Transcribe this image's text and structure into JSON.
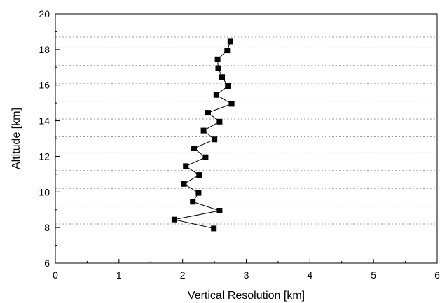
{
  "chart_data": {
    "type": "line",
    "title": "",
    "xlabel": "Vertical Resolution [km]",
    "ylabel": "Altitude [km]",
    "xlim": [
      0,
      6
    ],
    "ylim": [
      6,
      20
    ],
    "xticks": [
      "0",
      "1",
      "2",
      "3",
      "4",
      "5",
      "6"
    ],
    "yticks": [
      "6",
      "8",
      "10",
      "12",
      "14",
      "16",
      "18",
      "20"
    ],
    "x_minor_ticks": true,
    "y_minor_ticks": true,
    "grid": "horizontal dotted lines at 8.2, 9.2, 10.2, 11.2, 12.2, 13.1, 14.1, 15.1, 16.1, 17.1, 18.1, 18.7 km",
    "grid_y": [
      8.2,
      9.2,
      10.2,
      11.2,
      12.2,
      13.1,
      14.1,
      15.1,
      16.1,
      17.1,
      18.1,
      18.7
    ],
    "marker": "square",
    "legend": "none",
    "series": [
      {
        "points": [
          {
            "x": 2.49,
            "y": 7.95
          },
          {
            "x": 1.87,
            "y": 8.45
          },
          {
            "x": 2.58,
            "y": 8.95
          },
          {
            "x": 2.16,
            "y": 9.45
          },
          {
            "x": 2.25,
            "y": 9.95
          },
          {
            "x": 2.02,
            "y": 10.45
          },
          {
            "x": 2.26,
            "y": 10.95
          },
          {
            "x": 2.05,
            "y": 11.45
          },
          {
            "x": 2.36,
            "y": 11.95
          },
          {
            "x": 2.18,
            "y": 12.45
          },
          {
            "x": 2.5,
            "y": 12.95
          },
          {
            "x": 2.33,
            "y": 13.45
          },
          {
            "x": 2.58,
            "y": 13.95
          },
          {
            "x": 2.4,
            "y": 14.45
          },
          {
            "x": 2.77,
            "y": 14.95
          },
          {
            "x": 2.53,
            "y": 15.45
          },
          {
            "x": 2.71,
            "y": 15.95
          },
          {
            "x": 2.62,
            "y": 16.45
          },
          {
            "x": 2.56,
            "y": 16.95
          },
          {
            "x": 2.55,
            "y": 17.45
          },
          {
            "x": 2.7,
            "y": 17.95
          },
          {
            "x": 2.75,
            "y": 18.45
          }
        ]
      }
    ]
  }
}
